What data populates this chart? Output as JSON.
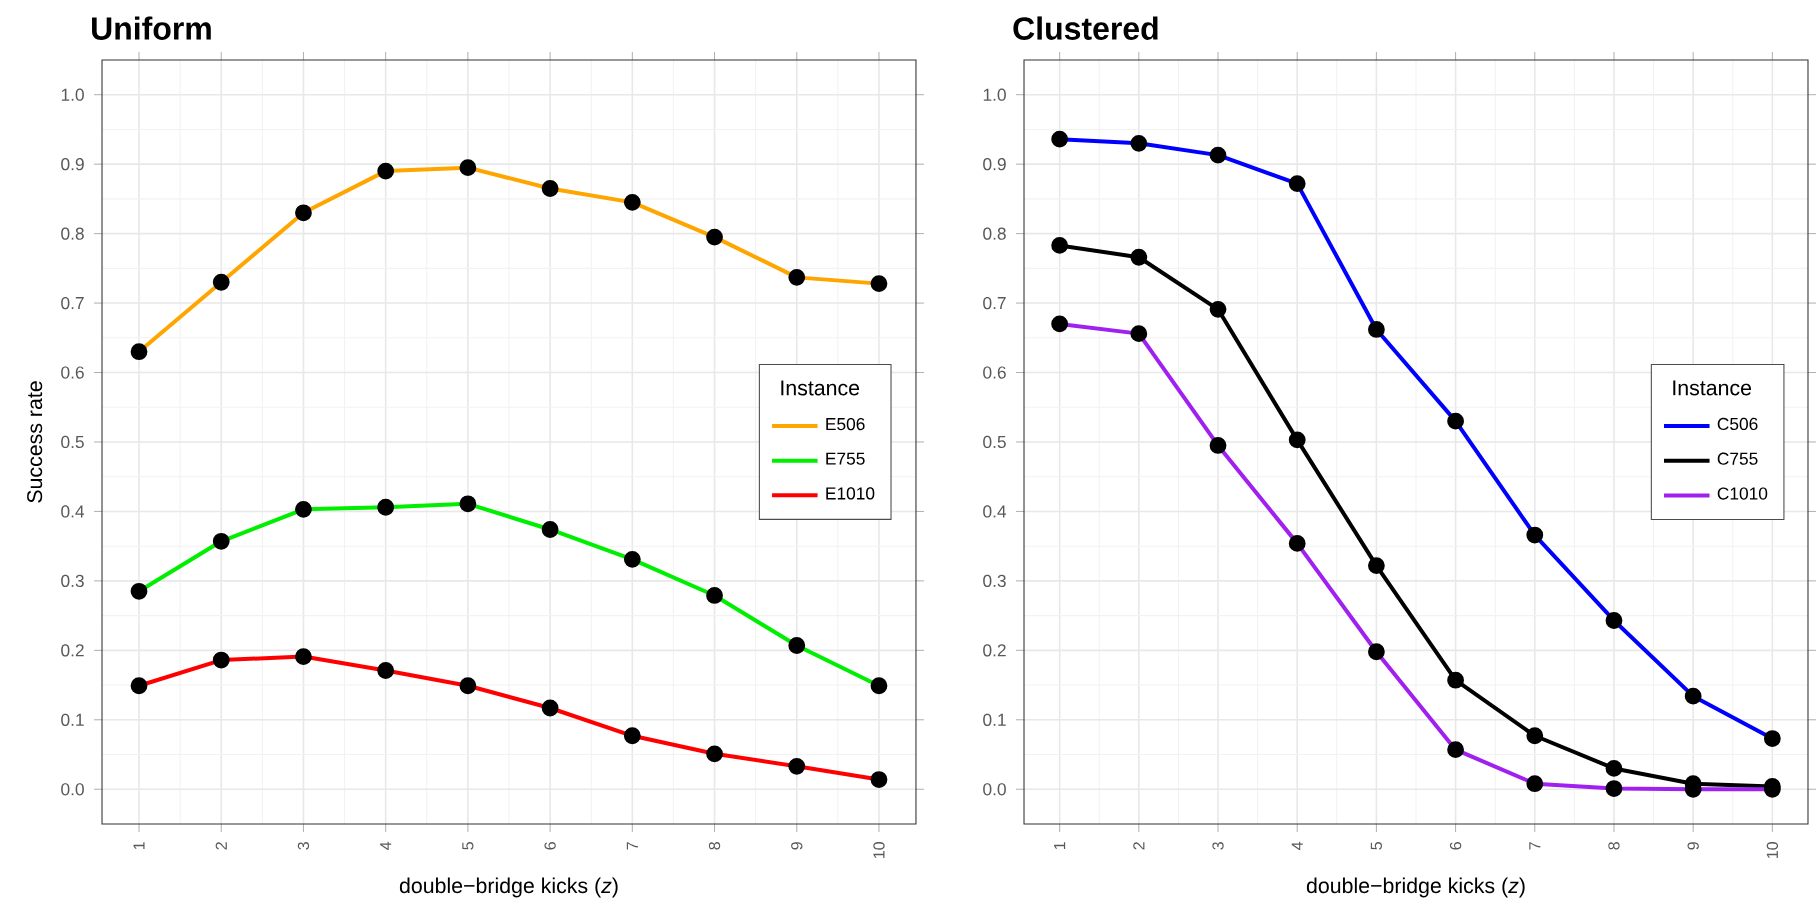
{
  "chart_data": [
    {
      "type": "line",
      "title": "Uniform",
      "xlabel": "double−bridge kicks (*z*)",
      "ylabel": "Success rate",
      "legend_title": "Instance",
      "legend": "right",
      "marker": "circle",
      "line_style": "solid",
      "grid": true,
      "x": [
        1,
        2,
        3,
        4,
        5,
        6,
        7,
        8,
        9,
        10
      ],
      "xlim": [
        0.55,
        10.45
      ],
      "ylim": [
        -0.05,
        1.05
      ],
      "xticks": [
        1,
        2,
        3,
        4,
        5,
        6,
        7,
        8,
        9,
        10
      ],
      "yticks": [
        {
          "value": 0,
          "label": "0.0"
        },
        {
          "value": 0.1,
          "label": "0.1"
        },
        {
          "value": 0.2,
          "label": "0.2"
        },
        {
          "value": 0.3,
          "label": "0.3"
        },
        {
          "value": 0.4,
          "label": "0.4"
        },
        {
          "value": 0.5,
          "label": "0.5"
        },
        {
          "value": 0.6,
          "label": "0.6"
        },
        {
          "value": 0.7,
          "label": "0.7"
        },
        {
          "value": 0.8,
          "label": "0.8"
        },
        {
          "value": 0.9,
          "label": "0.9"
        },
        {
          "value": 1,
          "label": "1.0"
        }
      ],
      "series": [
        {
          "name": "E506",
          "color": "#ffa500",
          "values": [
            0.63,
            0.73,
            0.83,
            0.89,
            0.895,
            0.865,
            0.845,
            0.795,
            0.737,
            0.728
          ]
        },
        {
          "name": "E755",
          "color": "#00ee00",
          "values": [
            0.285,
            0.357,
            0.403,
            0.406,
            0.411,
            0.374,
            0.331,
            0.279,
            0.207,
            0.149
          ]
        },
        {
          "name": "E1010",
          "color": "#ff0000",
          "values": [
            0.149,
            0.186,
            0.191,
            0.171,
            0.149,
            0.117,
            0.077,
            0.051,
            0.033,
            0.014
          ]
        }
      ]
    },
    {
      "type": "line",
      "title": "Clustered",
      "xlabel": "double−bridge kicks (*z*)",
      "legend_title": "Instance",
      "legend": "right",
      "marker": "circle",
      "line_style": "solid",
      "grid": true,
      "x": [
        1,
        2,
        3,
        4,
        5,
        6,
        7,
        8,
        9,
        10
      ],
      "xlim": [
        0.55,
        10.45
      ],
      "ylim": [
        -0.05,
        1.05
      ],
      "xticks": [
        1,
        2,
        3,
        4,
        5,
        6,
        7,
        8,
        9,
        10
      ],
      "yticks": [
        {
          "value": 0,
          "label": "0.0"
        },
        {
          "value": 0.1,
          "label": "0.1"
        },
        {
          "value": 0.2,
          "label": "0.2"
        },
        {
          "value": 0.3,
          "label": "0.3"
        },
        {
          "value": 0.4,
          "label": "0.4"
        },
        {
          "value": 0.5,
          "label": "0.5"
        },
        {
          "value": 0.6,
          "label": "0.6"
        },
        {
          "value": 0.7,
          "label": "0.7"
        },
        {
          "value": 0.8,
          "label": "0.8"
        },
        {
          "value": 0.9,
          "label": "0.9"
        },
        {
          "value": 1,
          "label": "1.0"
        }
      ],
      "series": [
        {
          "name": "C506",
          "color": "#0000ff",
          "values": [
            0.936,
            0.93,
            0.913,
            0.872,
            0.662,
            0.53,
            0.366,
            0.243,
            0.134,
            0.073
          ]
        },
        {
          "name": "C755",
          "color": "#000000",
          "values": [
            0.783,
            0.766,
            0.691,
            0.503,
            0.322,
            0.157,
            0.077,
            0.03,
            0.008,
            0.004
          ]
        },
        {
          "name": "C1010",
          "color": "#a020f0",
          "values": [
            0.67,
            0.656,
            0.495,
            0.354,
            0.198,
            0.057,
            0.008,
            0.001,
            0.0,
            0.0
          ]
        }
      ]
    }
  ]
}
